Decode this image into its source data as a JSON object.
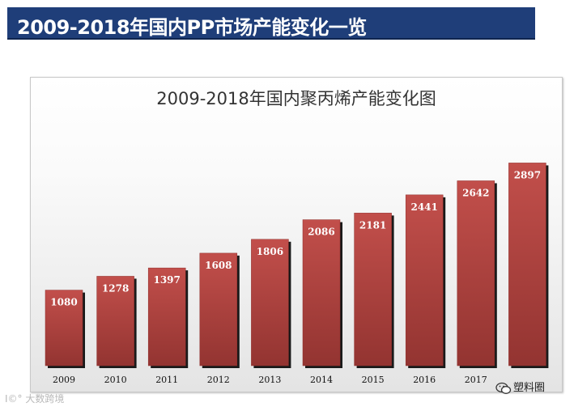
{
  "banner": {
    "title": "2009-2018年国内PP市场产能变化一览"
  },
  "chart_data": {
    "type": "bar",
    "title": "2009-2018年国内聚丙烯产能变化图",
    "categories": [
      "2009",
      "2010",
      "2011",
      "2012",
      "2013",
      "2014",
      "2015",
      "2016",
      "2017",
      ""
    ],
    "values": [
      1080,
      1278,
      1397,
      1608,
      1806,
      2086,
      2181,
      2441,
      2642,
      2897
    ],
    "data_labels": [
      "1080",
      "1278",
      "1397",
      "1608",
      "1806",
      "2086",
      "2181",
      "2441",
      "2642",
      "2897"
    ],
    "xlabel": "",
    "ylabel": "",
    "ylim": [
      0,
      3200
    ],
    "bar_color": "#b84744",
    "bar_color_dark": "#8f2f2c",
    "grid": false,
    "legend": "none"
  },
  "watermarks": {
    "left": "I©° 大数跨境",
    "right_icon": "wechat-icon",
    "right": "塑料圈"
  }
}
